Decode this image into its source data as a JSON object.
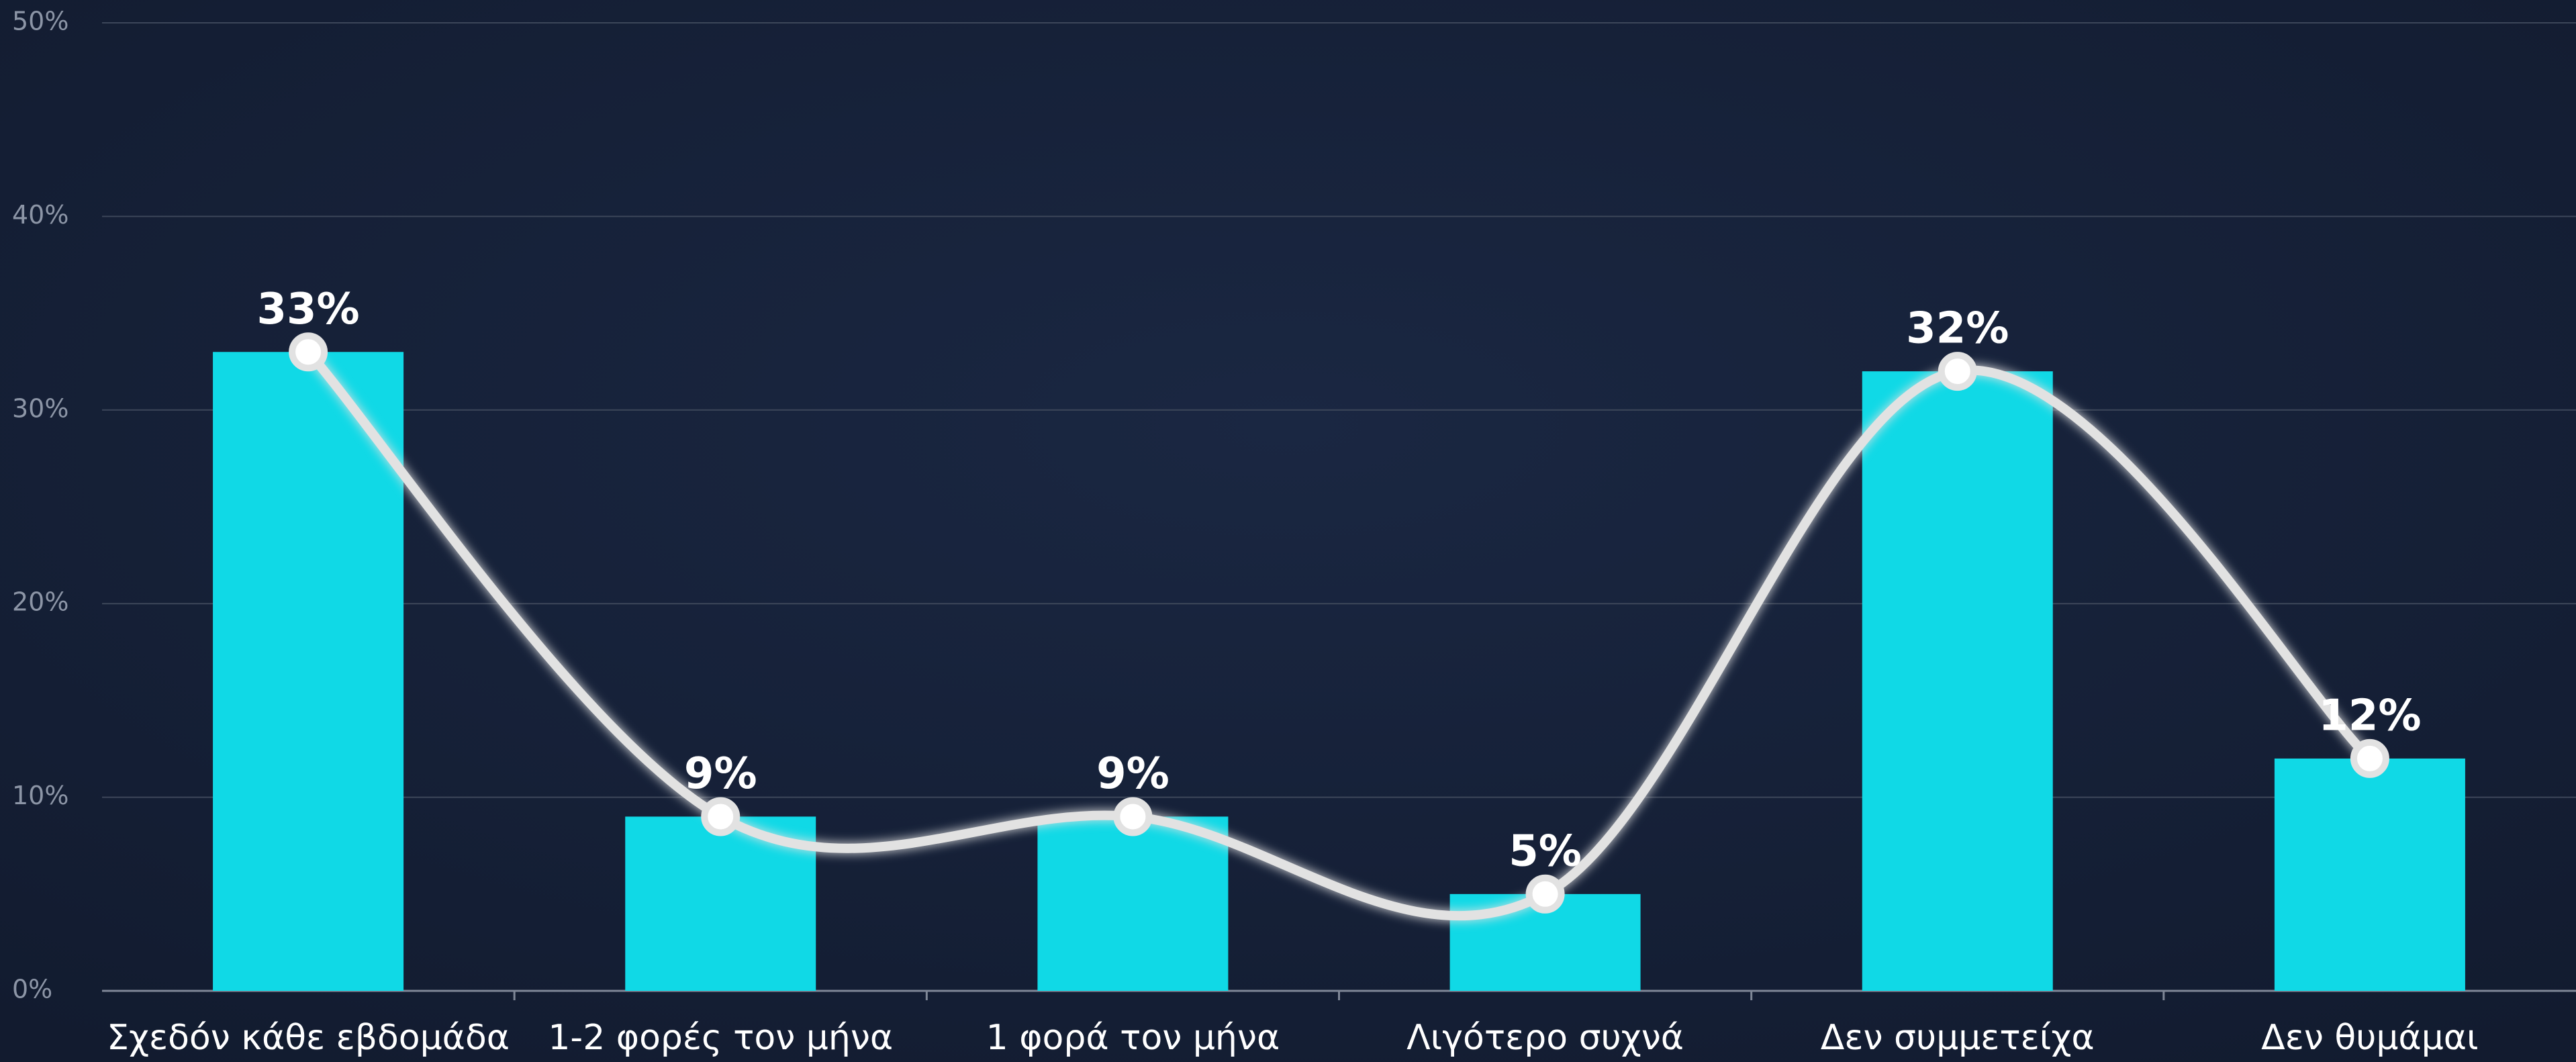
{
  "chart_data": {
    "type": "bar",
    "categories": [
      "Σχεδόν κάθε εβδομάδα",
      "1-2 φορές τον μήνα",
      "1 φορά τον μήνα",
      "Λιγότερο συχνά",
      "Δεν συμμετείχα",
      "Δεν θυμάμαι"
    ],
    "values": [
      33,
      9,
      9,
      5,
      32,
      12
    ],
    "value_labels": [
      "33%",
      "9%",
      "9%",
      "5%",
      "32%",
      "12%"
    ],
    "color": "#10d9e6",
    "line_overlay": true,
    "line_color": "#e2e2e2",
    "ylim": [
      0,
      50
    ],
    "yticks": [
      {
        "value": 0,
        "label": "0%"
      },
      {
        "value": 10,
        "label": "10%"
      },
      {
        "value": 20,
        "label": "20%"
      },
      {
        "value": 30,
        "label": "30%"
      },
      {
        "value": 40,
        "label": "40%"
      },
      {
        "value": 50,
        "label": "50%"
      }
    ],
    "grid": true
  }
}
